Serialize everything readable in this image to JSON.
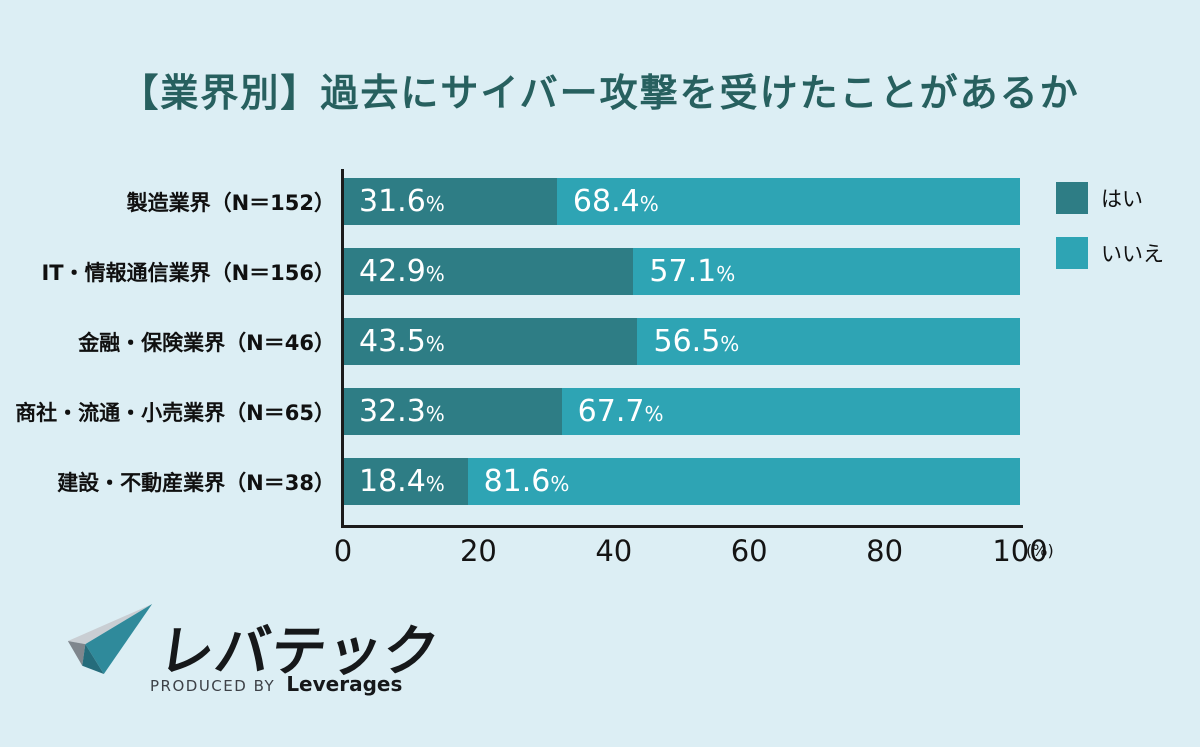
{
  "title": "【業界別】過去にサイバー攻撃を受けたことがあるか",
  "colors": {
    "background": "#dceef4",
    "title_text": "#27605f",
    "yes_bar": "#2e7d85",
    "no_bar": "#2ea4b4",
    "axis": "#1b1b1b",
    "bar_label_text": "#ffffff"
  },
  "legend": {
    "position": "top-right",
    "items": [
      {
        "label": "はい",
        "color": "#2e7d85"
      },
      {
        "label": "いいえ",
        "color": "#2ea4b4"
      }
    ]
  },
  "chart_data": {
    "type": "bar",
    "orientation": "horizontal",
    "stacked": true,
    "title": "【業界別】過去にサイバー攻撃を受けたことがあるか",
    "categories": [
      "製造業界（N＝152）",
      "IT・情報通信業界（N＝156）",
      "金融・保険業界（N＝46）",
      "商社・流通・小売業界（N＝65）",
      "建設・不動産業界（N＝38）"
    ],
    "series": [
      {
        "name": "はい",
        "values": [
          31.6,
          42.9,
          43.5,
          32.3,
          18.4
        ]
      },
      {
        "name": "いいえ",
        "values": [
          68.4,
          57.1,
          56.5,
          67.7,
          81.6
        ]
      }
    ],
    "value_suffix": "%",
    "xlim": [
      0,
      100
    ],
    "xticks": [
      "0",
      "20",
      "40",
      "60",
      "80",
      "100"
    ],
    "x_unit": "(%)",
    "grid": false,
    "legend_position": "top-right"
  },
  "footer": {
    "logo_text": "レバテック",
    "produced_by": "PRODUCED BY",
    "company": "Leverages"
  }
}
